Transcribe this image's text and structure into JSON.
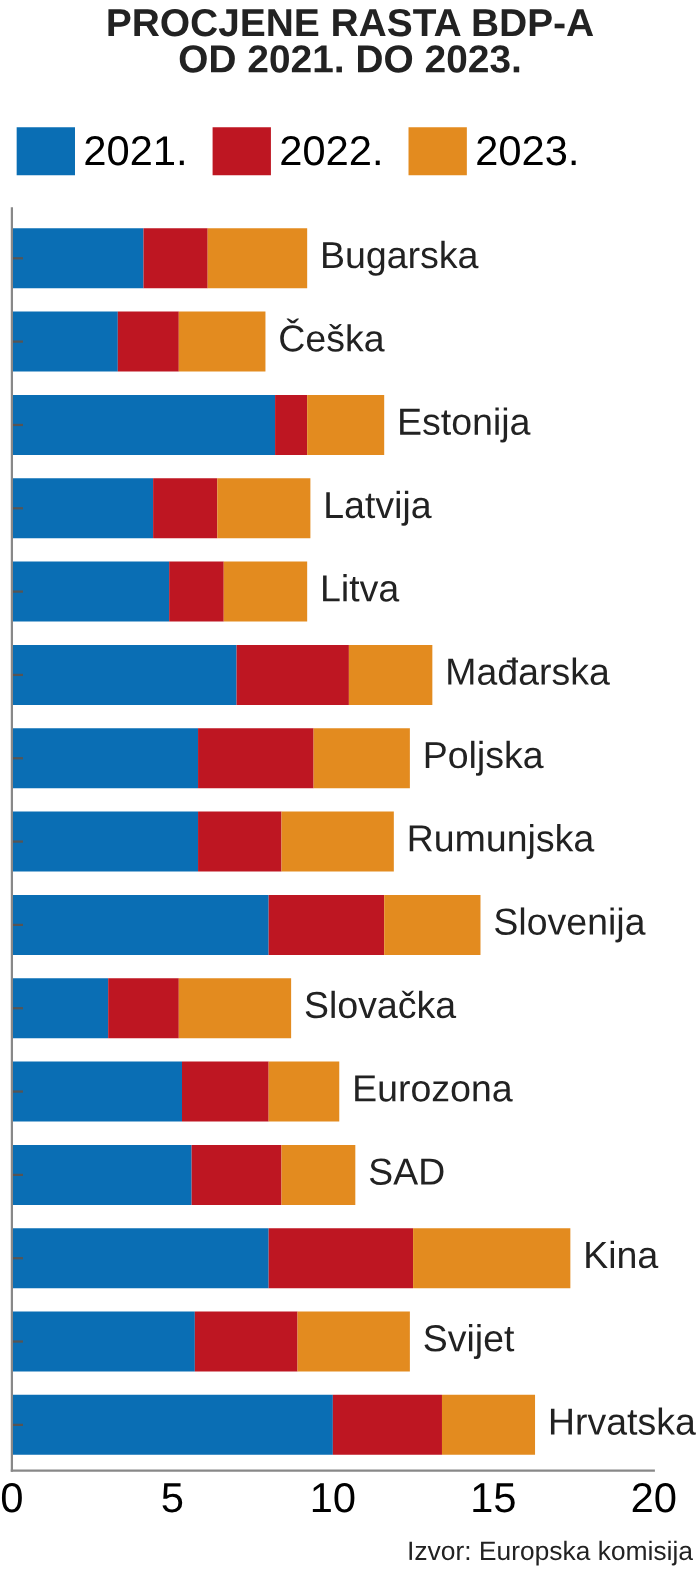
{
  "chart_data": {
    "type": "bar",
    "orientation": "horizontal",
    "stacked": true,
    "title": "PROCJENE RASTA BDP-A\nOD 2021. DO 2023.",
    "categories": [
      "Bugarska",
      "Češka",
      "Estonija",
      "Latvija",
      "Litva",
      "Mađarska",
      "Poljska",
      "Rumunjska",
      "Slovenija",
      "Slovačka",
      "Eurozona",
      "SAD",
      "Kina",
      "Svijet",
      "Hrvatska"
    ],
    "series": [
      {
        "name": "2021.",
        "color": "#0a6eb4",
        "values": [
          4.1,
          3.3,
          8.2,
          4.4,
          4.9,
          7.0,
          5.8,
          5.8,
          8.0,
          3.0,
          5.3,
          5.6,
          8.0,
          5.7,
          10.0
        ]
      },
      {
        "name": "2022.",
        "color": "#be1622",
        "values": [
          2.0,
          1.9,
          1.0,
          2.0,
          1.7,
          3.5,
          3.6,
          2.6,
          3.6,
          2.2,
          2.7,
          2.8,
          4.5,
          3.2,
          3.4
        ]
      },
      {
        "name": "2023.",
        "color": "#e38b1f",
        "values": [
          3.1,
          2.7,
          2.4,
          2.9,
          2.6,
          2.6,
          3.0,
          3.5,
          3.0,
          3.5,
          2.2,
          2.3,
          4.9,
          3.5,
          2.9
        ]
      }
    ],
    "xlim": [
      0,
      20
    ],
    "xticks": [
      0,
      5,
      10,
      15,
      20
    ],
    "grid": false,
    "legend": "top left",
    "annotations": [
      "Izvor: Europska komisija"
    ]
  }
}
